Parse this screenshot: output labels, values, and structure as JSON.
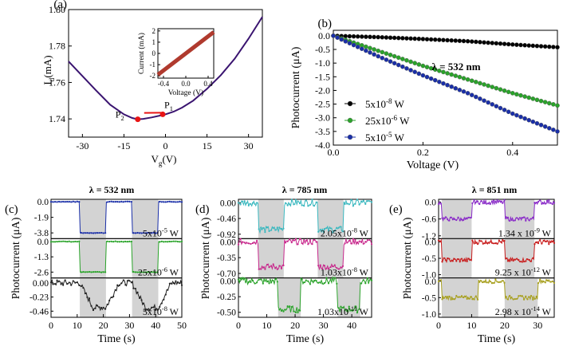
{
  "colors": {
    "purple_curve": "#3a1470",
    "inset_line": "#b03a2e",
    "black_series": "#000000",
    "green_series": "#2aa32a",
    "blue_series": "#1a2fa8",
    "red_dot": "#e81515",
    "shade": "#d3d3d3",
    "cyan_series": "#3ab8bf",
    "magenta_series": "#c8288c",
    "purple_series": "#8a2cc8",
    "red_series": "#c81e1e",
    "olive_series": "#a8a020"
  },
  "chart_data": [
    {
      "id": "a",
      "type": "line",
      "panel_label": "(a)",
      "xlabel": "V",
      "xlabel_sub": "g",
      "xlabel_unit": "(V)",
      "ylabel": "I",
      "ylabel_sub": "d",
      "ylabel_unit": "(mA)",
      "xlim": [
        -35,
        35
      ],
      "ylim": [
        1.73,
        1.8
      ],
      "xticks": [
        -30,
        -15,
        0,
        15,
        30
      ],
      "xtick_labels": [
        "-30",
        "-15",
        "0",
        "15",
        "30"
      ],
      "yticks": [
        1.74,
        1.76,
        1.78,
        1.8
      ],
      "ytick_labels": [
        "1.74",
        "1.76",
        "1.78",
        "1.80"
      ],
      "curve_x": [
        -35,
        -30,
        -25,
        -20,
        -15,
        -12,
        -10,
        -8,
        -5,
        -2,
        0,
        3,
        6,
        10,
        15,
        20,
        25,
        30,
        35
      ],
      "curve_y": [
        1.7715,
        1.7635,
        1.7555,
        1.7478,
        1.7425,
        1.7405,
        1.7398,
        1.74,
        1.7408,
        1.7418,
        1.7425,
        1.744,
        1.7462,
        1.75,
        1.7565,
        1.764,
        1.773,
        1.784,
        1.796
      ],
      "points": [
        {
          "label": "P",
          "sub": "1",
          "x": -1,
          "y": 1.7425
        },
        {
          "label": "P",
          "sub": "2",
          "x": -10,
          "y": 1.7398
        }
      ],
      "inset": {
        "type": "line",
        "xlabel": "Voltage (V)",
        "ylabel": "Current (mA)",
        "xlim": [
          -0.5,
          0.5
        ],
        "ylim": [
          -2.2,
          2.2
        ],
        "xticks": [
          -0.4,
          0.0,
          0.4
        ],
        "xtick_labels": [
          "-0.4",
          "0.0",
          "0.4"
        ],
        "yticks": [
          -2,
          -1,
          0,
          1,
          2
        ],
        "ytick_labels": [
          "-2",
          "-1",
          "0",
          "1",
          "2"
        ],
        "x": [
          -0.5,
          0.5
        ],
        "y": [
          -1.9,
          1.9
        ]
      }
    },
    {
      "id": "b",
      "type": "scatter",
      "panel_label": "(b)",
      "xlabel": "Voltage (V)",
      "ylabel": "Photocurrent (μA)",
      "annotation": "λ = 532 nm",
      "xlim": [
        0,
        0.5
      ],
      "ylim": [
        -4.0,
        0.2
      ],
      "xticks": [
        0,
        0.2,
        0.4
      ],
      "xtick_labels": [
        "0.0",
        "0.2",
        "0.4"
      ],
      "yticks": [
        0,
        -0.5,
        -1.0,
        -1.5,
        -2.0,
        -2.5,
        -3.0,
        -3.5,
        -4.0
      ],
      "ytick_labels": [
        "0.0",
        "-0.5",
        "-1.0",
        "-1.5",
        "-2.0",
        "-2.5",
        "-3.0",
        "-3.5",
        "-4.0"
      ],
      "series": [
        {
          "name": "5x10",
          "exp": "-8",
          "unit": " W",
          "color": "#000000",
          "x": [
            0.0,
            0.1,
            0.2,
            0.3,
            0.4,
            0.5
          ],
          "y": [
            0.0,
            -0.05,
            -0.12,
            -0.2,
            -0.32,
            -0.42
          ]
        },
        {
          "name": "25x10",
          "exp": "-6",
          "unit": " W",
          "color": "#2aa32a",
          "x": [
            0.0,
            0.1,
            0.2,
            0.3,
            0.4,
            0.5
          ],
          "y": [
            0.0,
            -0.55,
            -1.1,
            -1.6,
            -2.1,
            -2.55
          ]
        },
        {
          "name": "5x10",
          "exp": "-5",
          "unit": " W",
          "color": "#1a2fa8",
          "x": [
            0.0,
            0.1,
            0.2,
            0.3,
            0.4,
            0.5
          ],
          "y": [
            0.0,
            -0.75,
            -1.45,
            -2.1,
            -2.85,
            -3.5
          ]
        }
      ]
    },
    {
      "id": "c",
      "type": "line",
      "panel_label": "(c)",
      "title": "λ = 532 nm",
      "xlabel": "Time (s)",
      "ylabel": "Photocurrent (μA)",
      "xlim": [
        0,
        50
      ],
      "xticks": [
        0,
        10,
        20,
        30,
        40,
        50
      ],
      "xtick_labels": [
        "0",
        "10",
        "20",
        "30",
        "40",
        "50"
      ],
      "shaded": [
        [
          11,
          21
        ],
        [
          31,
          41
        ]
      ],
      "subplots": [
        {
          "label": "5x10",
          "exp": "-5",
          "unit": " W",
          "color": "#1a2fa8",
          "ylim": [
            -4.5,
            0.3
          ],
          "yticks": [
            0,
            -1.9,
            -3.8
          ],
          "ytick_labels": [
            "0.0",
            "-1.9",
            "-3.8"
          ],
          "low": -3.8,
          "shape": "square"
        },
        {
          "label": "25x10",
          "exp": "-6",
          "unit": " W",
          "color": "#2aa32a",
          "ylim": [
            -3.1,
            0.25
          ],
          "yticks": [
            0,
            -1.3,
            -2.6
          ],
          "ytick_labels": [
            "0.0",
            "-1.3",
            "-2.6"
          ],
          "low": -2.6,
          "shape": "square"
        },
        {
          "label": "5x10",
          "exp": "-8",
          "unit": " W",
          "color": "#222222",
          "ylim": [
            -0.56,
            0.08
          ],
          "yticks": [
            0,
            -0.23,
            -0.46
          ],
          "ytick_labels": [
            "0.00",
            "-0.23",
            "-0.46"
          ],
          "low": -0.4,
          "shape": "slow"
        }
      ]
    },
    {
      "id": "d",
      "type": "line",
      "panel_label": "(d)",
      "title": "λ = 785 nm",
      "xlabel": "Time (s)",
      "ylabel": "Photocurrent (μA)",
      "xlim": [
        0,
        47
      ],
      "xticks": [
        0,
        10,
        20,
        30,
        40
      ],
      "xtick_labels": [
        "0",
        "10",
        "20",
        "30",
        "40"
      ],
      "shaded": [
        [
          7,
          16
        ],
        [
          28,
          37
        ]
      ],
      "subplots": [
        {
          "label": "2.05x10",
          "exp": "-8",
          "unit": " W",
          "color": "#3ab8bf",
          "ylim": [
            -1.05,
            0.1
          ],
          "yticks": [
            0,
            -0.46,
            -0.92
          ],
          "ytick_labels": [
            "0.00",
            "-0.46",
            "-0.92"
          ],
          "low": -0.78,
          "shape": "noisy"
        },
        {
          "label": "1.03x10",
          "exp": "-8",
          "unit": " W",
          "color": "#c8288c",
          "ylim": [
            -0.8,
            0.07
          ],
          "yticks": [
            0,
            -0.35,
            -0.7
          ],
          "ytick_labels": [
            "0.00",
            "-0.35",
            "-0.70"
          ],
          "low": -0.55,
          "shape": "noisy"
        },
        {
          "label": "1.03x10",
          "exp": "-11",
          "unit": " W",
          "color": "#2aa32a",
          "ylim": [
            -0.58,
            0.05
          ],
          "yticks": [
            0,
            -0.25,
            -0.5
          ],
          "ytick_labels": [
            "0.00",
            "-0.25",
            "-0.50"
          ],
          "low": -0.45,
          "shape": "noisy",
          "shaded_override": [
            [
              14,
              22
            ],
            [
              35,
              43
            ]
          ]
        }
      ]
    },
    {
      "id": "e",
      "type": "line",
      "panel_label": "(e)",
      "title": "λ = 851 nm",
      "xlabel": "Time (s)",
      "ylabel": "Photocurrent (μA)",
      "xlim": [
        0,
        35
      ],
      "xticks": [
        0,
        10,
        20,
        30
      ],
      "xtick_labels": [
        "0",
        "10",
        "20",
        "30"
      ],
      "shaded": [
        [
          1,
          10
        ],
        [
          20,
          29
        ]
      ],
      "subplots": [
        {
          "label": "1.34 x 10",
          "exp": "-9",
          "unit": " W",
          "color": "#8a2cc8",
          "ylim": [
            -1.3,
            0.1
          ],
          "yticks": [
            0,
            -0.6,
            -1.2
          ],
          "ytick_labels": [
            "0.0",
            "-0.6",
            "-1.2"
          ],
          "low": -0.6,
          "shape": "noisy"
        },
        {
          "label": "9.25 x 10",
          "exp": "-12",
          "unit": " W",
          "color": "#c81e1e",
          "ylim": [
            -1.1,
            0.1
          ],
          "yticks": [
            0,
            -0.5,
            -1.0
          ],
          "ytick_labels": [
            "0.0",
            "-0.5",
            "-1.0"
          ],
          "low": -0.55,
          "shape": "noisy"
        },
        {
          "label": "2.98 x 10",
          "exp": "-14",
          "unit": " W",
          "color": "#a8a020",
          "ylim": [
            -1.1,
            0.1
          ],
          "yticks": [
            0,
            -0.5,
            -1.0
          ],
          "ytick_labels": [
            "0.0",
            "-0.5",
            "-1.0"
          ],
          "low": -0.5,
          "shape": "noisy",
          "shaded_override": [
            [
              1,
              12
            ],
            [
              20,
              30
            ]
          ]
        }
      ]
    }
  ]
}
